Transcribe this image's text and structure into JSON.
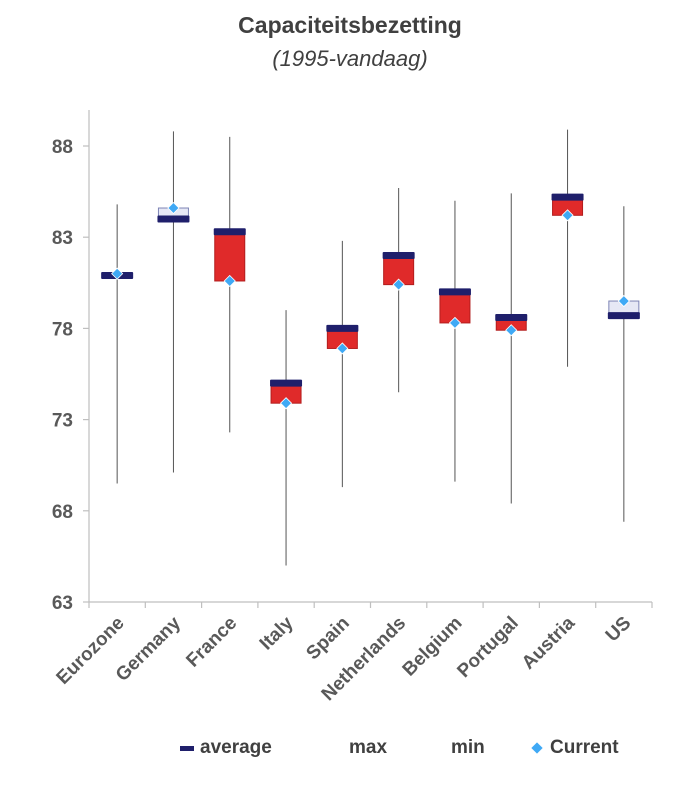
{
  "title": "Capaciteitsbezetting",
  "subtitle": "(1995-vandaag)",
  "colors": {
    "average": "#1f1f6b",
    "above_fill": "#e02a2a",
    "below_fill": "#e6e8f5",
    "current": "#3fa9f5",
    "whisker": "#555555",
    "axis": "#bfbfbf"
  },
  "legend": {
    "average": "average",
    "max": "max",
    "min": "min",
    "current": "Current"
  },
  "chart_data": {
    "type": "box",
    "title": "Capaciteitsbezetting",
    "subtitle": "(1995-vandaag)",
    "ylim": [
      63,
      90
    ],
    "yticks": [
      63,
      68,
      73,
      78,
      83,
      88
    ],
    "categories": [
      "Eurozone",
      "Germany",
      "France",
      "Italy",
      "Spain",
      "Netherlands",
      "Belgium",
      "Portugal",
      "Austria",
      "US"
    ],
    "series": [
      {
        "name": "average",
        "values": [
          80.9,
          84.0,
          83.3,
          75.0,
          78.0,
          82.0,
          80.0,
          78.6,
          85.2,
          78.7
        ]
      },
      {
        "name": "max",
        "values": [
          84.8,
          88.8,
          88.5,
          79.0,
          82.8,
          85.7,
          85.0,
          85.4,
          88.9,
          84.7
        ]
      },
      {
        "name": "min",
        "values": [
          69.5,
          70.1,
          72.3,
          65.0,
          69.3,
          74.5,
          69.6,
          68.4,
          75.9,
          67.4
        ]
      },
      {
        "name": "Current",
        "values": [
          81.0,
          84.6,
          80.6,
          73.9,
          76.9,
          80.4,
          78.3,
          77.9,
          84.2,
          79.5
        ]
      }
    ]
  }
}
